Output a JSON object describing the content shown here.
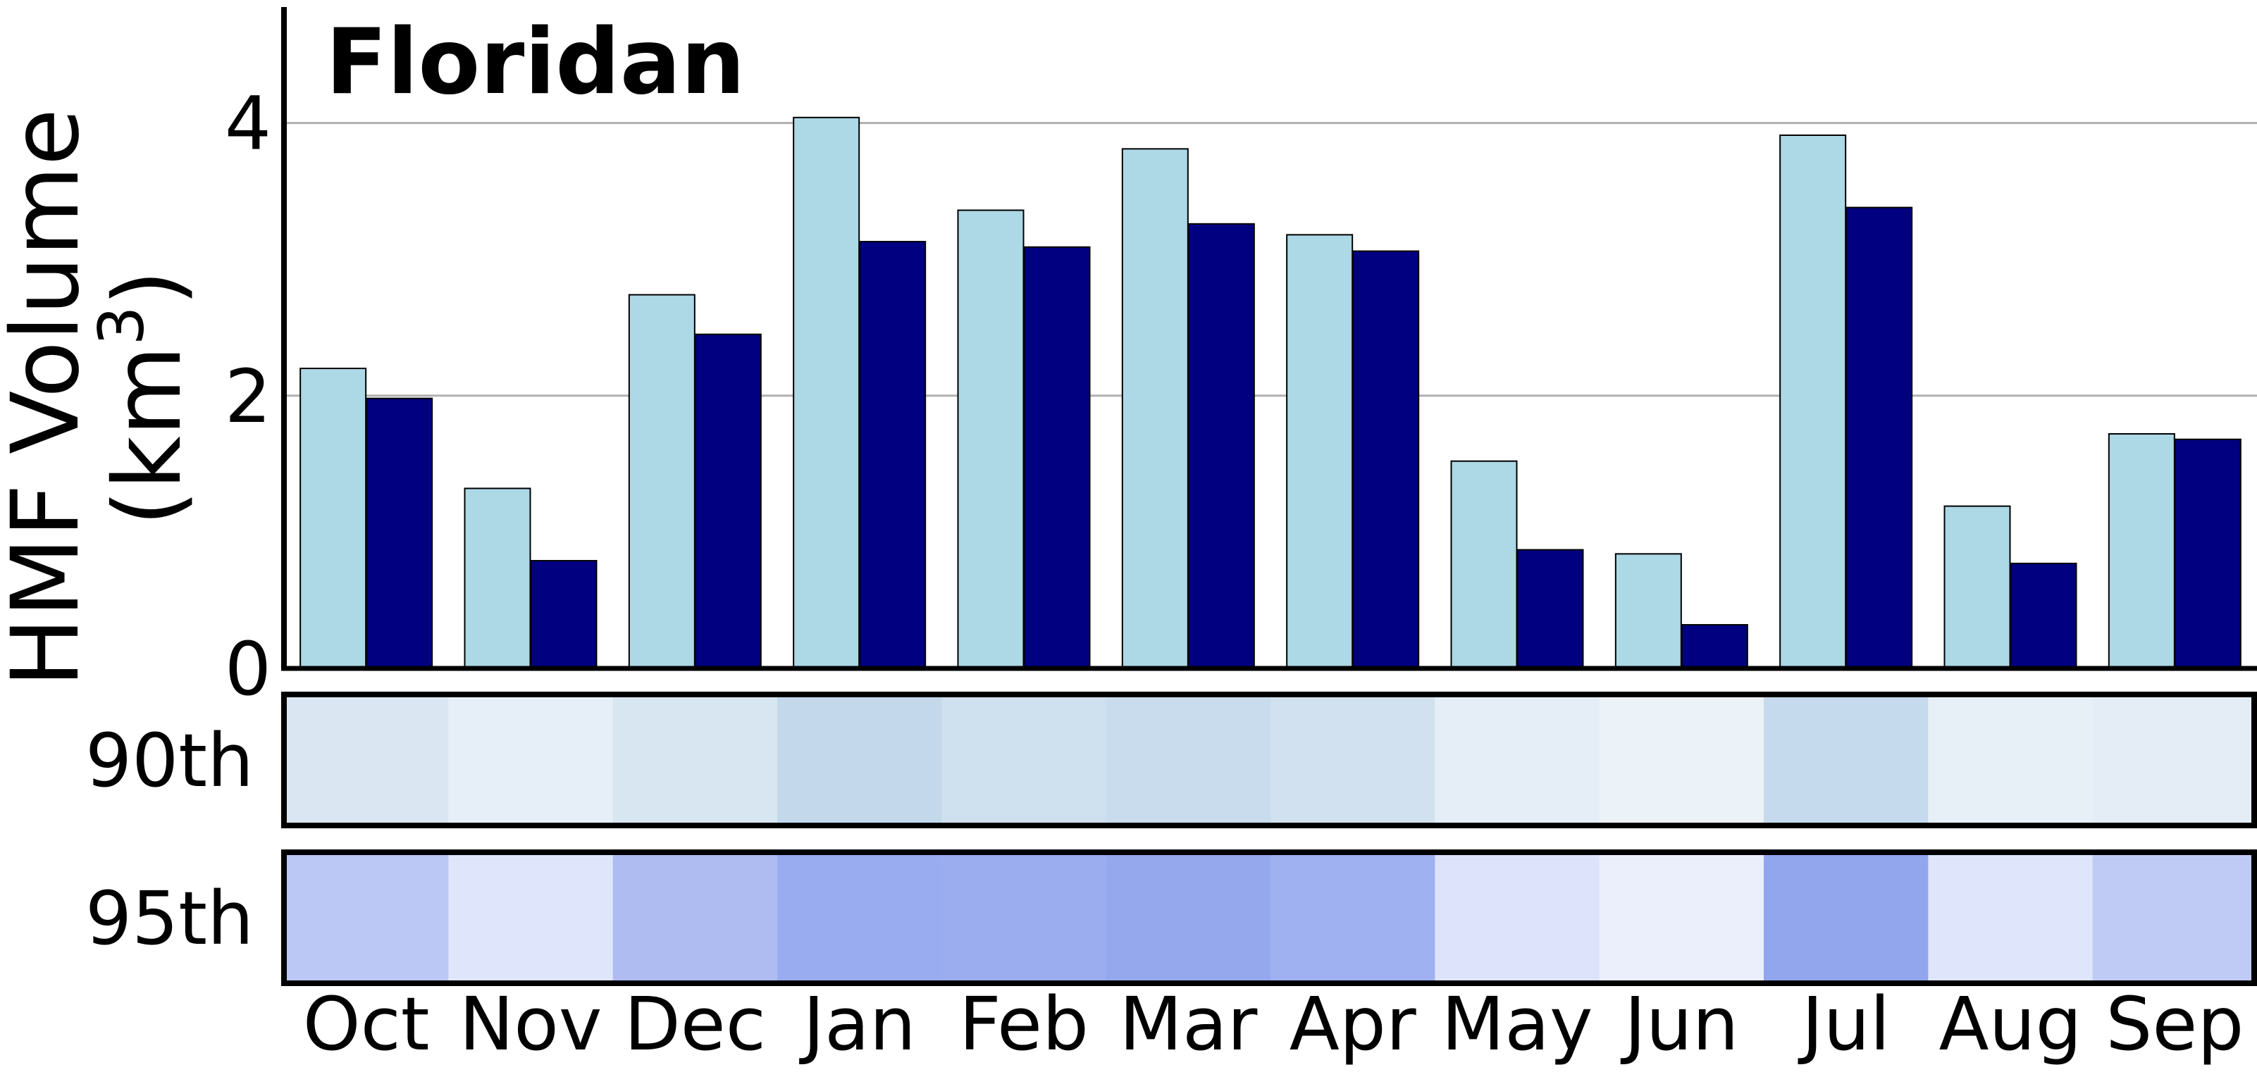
{
  "chart_data": {
    "type": "bar",
    "title": "Floridan",
    "ylabel_line1": "HMF Volume",
    "ylabel_line2": "(km",
    "ylabel_sup": "3",
    "ylabel_close": ")",
    "ylim": [
      0,
      4.85
    ],
    "yticks": [
      0,
      2,
      4
    ],
    "grid_y": [
      2,
      4
    ],
    "categories": [
      "Oct",
      "Nov",
      "Dec",
      "Jan",
      "Feb",
      "Mar",
      "Apr",
      "May",
      "Jun",
      "Jul",
      "Aug",
      "Sep"
    ],
    "series": [
      {
        "color": "#add8e6",
        "values": [
          2.2,
          1.32,
          2.74,
          4.04,
          3.36,
          3.81,
          3.18,
          1.52,
          0.84,
          3.91,
          1.19,
          1.72
        ]
      },
      {
        "color": "#000080",
        "values": [
          1.98,
          0.79,
          2.45,
          3.13,
          3.09,
          3.26,
          3.06,
          0.87,
          0.32,
          3.38,
          0.77,
          1.68
        ]
      }
    ],
    "heatmap": {
      "rows": [
        {
          "label": "90th",
          "values": [
            0.2,
            0.1,
            0.22,
            0.4,
            0.3,
            0.35,
            0.28,
            0.11,
            0.06,
            0.38,
            0.09,
            0.12
          ]
        },
        {
          "label": "95th",
          "values": [
            0.55,
            0.2,
            0.68,
            0.88,
            0.86,
            0.92,
            0.82,
            0.22,
            0.08,
            0.95,
            0.2,
            0.5
          ]
        }
      ],
      "row_colors": [
        "#1f6fb4",
        "#3a5ee0"
      ]
    }
  }
}
